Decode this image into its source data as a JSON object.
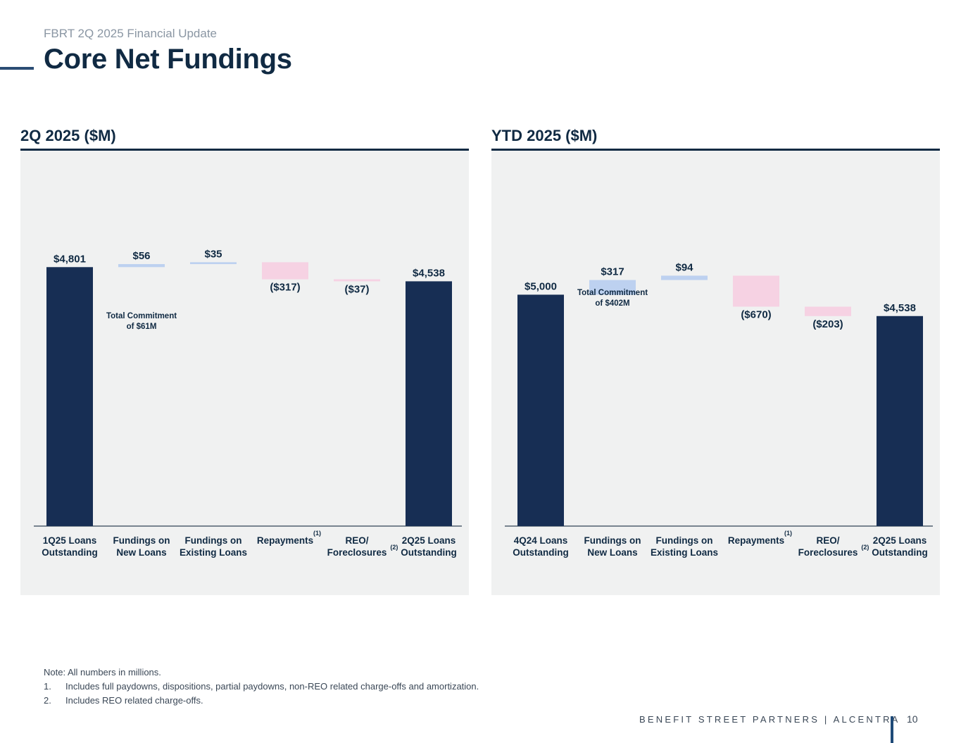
{
  "header": {
    "subtitle": "FBRT 2Q 2025 Financial Update",
    "title": "Core Net Fundings"
  },
  "colors": {
    "total_bar": "#172e54",
    "increase_bar": "#bdd1f0",
    "decrease_bar": "#f6d2e3",
    "axis": "#51606f",
    "panel_bg": "#f0f1f1",
    "label": "#102a43"
  },
  "chart_data": [
    {
      "type": "waterfall",
      "title": "2Q 2025 ($M)",
      "categories": [
        [
          "1Q25 Loans",
          "Outstanding"
        ],
        [
          "Fundings on",
          "New Loans"
        ],
        [
          "Fundings on",
          "Existing Loans"
        ],
        [
          "Repayments"
        ],
        [
          "REO/",
          "Foreclosures"
        ],
        [
          "2Q25 Loans",
          "Outstanding"
        ]
      ],
      "superscripts": [
        "",
        "",
        "",
        "(1)",
        "(2)",
        ""
      ],
      "values": [
        4801,
        56,
        35,
        -317,
        -37,
        4538
      ],
      "kinds": [
        "total",
        "increase",
        "increase",
        "decrease",
        "decrease",
        "total"
      ],
      "value_labels": [
        "$4,801",
        "$56",
        "$35",
        "($317)",
        "($37)",
        "$4,538"
      ],
      "annotations": [
        {
          "category_index": 1,
          "lines": [
            "Total Commitment",
            "of $61M"
          ]
        }
      ],
      "ylim": [
        0,
        5500
      ]
    },
    {
      "type": "waterfall",
      "title": "YTD 2025 ($M)",
      "categories": [
        [
          "4Q24 Loans",
          "Outstanding"
        ],
        [
          "Fundings on",
          "New Loans"
        ],
        [
          "Fundings on",
          "Existing Loans"
        ],
        [
          "Repayments"
        ],
        [
          "REO/",
          "Foreclosures"
        ],
        [
          "2Q25 Loans",
          "Outstanding"
        ]
      ],
      "superscripts": [
        "",
        "",
        "",
        "(1)",
        "(2)",
        ""
      ],
      "values": [
        5000,
        317,
        94,
        -670,
        -203,
        4538
      ],
      "kinds": [
        "total",
        "increase",
        "increase",
        "decrease",
        "decrease",
        "total"
      ],
      "value_labels": [
        "$5,000",
        "$317",
        "$94",
        "($670)",
        "($203)",
        "$4,538"
      ],
      "annotations": [
        {
          "category_index": 1,
          "lines": [
            "Total Commitment",
            "of $402M"
          ]
        }
      ],
      "ylim": [
        0,
        6000
      ]
    }
  ],
  "notes": {
    "lead": "Note: All numbers in millions.",
    "items": [
      {
        "num": "1.",
        "text": "Includes full paydowns, dispositions, partial paydowns, non-REO related charge-offs and amortization."
      },
      {
        "num": "2.",
        "text": "Includes REO related charge-offs."
      }
    ]
  },
  "footer": {
    "brand": "BENEFIT STREET PARTNERS | ALCENTRA",
    "page": "10"
  }
}
